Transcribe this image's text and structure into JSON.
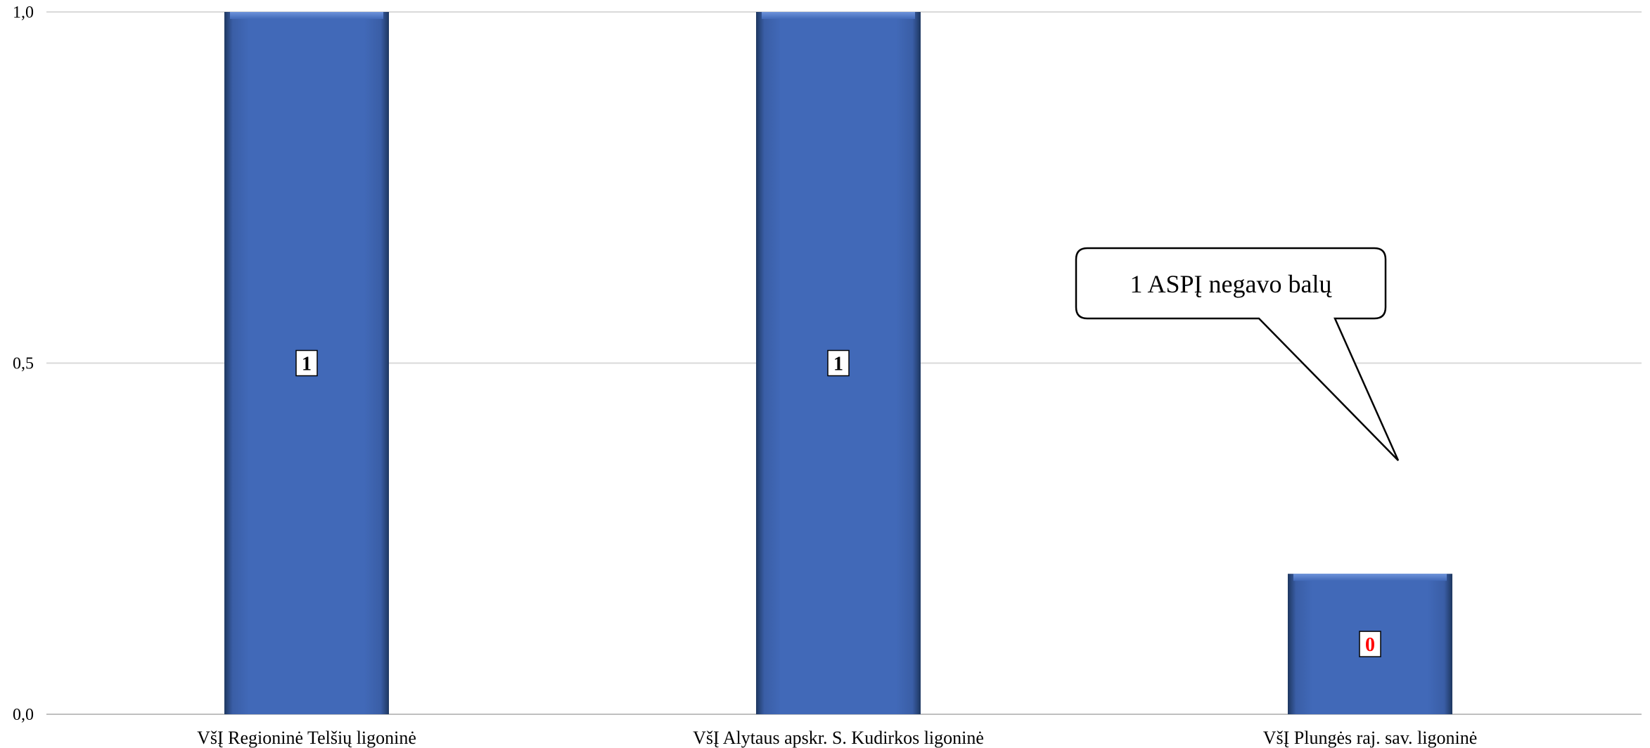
{
  "chart_data": {
    "type": "bar",
    "title": "",
    "xlabel": "",
    "ylabel": "",
    "categories": [
      "VšĮ Regioninė Telšių ligoninė",
      "VšĮ Alytaus apskr. S. Kudirkos ligoninė",
      "VšĮ Plungės raj. sav. ligoninė"
    ],
    "values": [
      1,
      1,
      0.2
    ],
    "data_labels": [
      "1",
      "1",
      "0"
    ],
    "data_label_colors": [
      "#000000",
      "#000000",
      "#ff0000"
    ],
    "ylim": [
      0,
      1
    ],
    "yticks": [
      "0,0",
      "0,5",
      "1,0"
    ],
    "ytick_values": [
      0,
      0.5,
      1
    ],
    "grid": true,
    "legend": "none",
    "bar_color": "#4169b8",
    "annotation": {
      "text": "1 ASPĮ negavo balų",
      "target_category": 2
    }
  }
}
